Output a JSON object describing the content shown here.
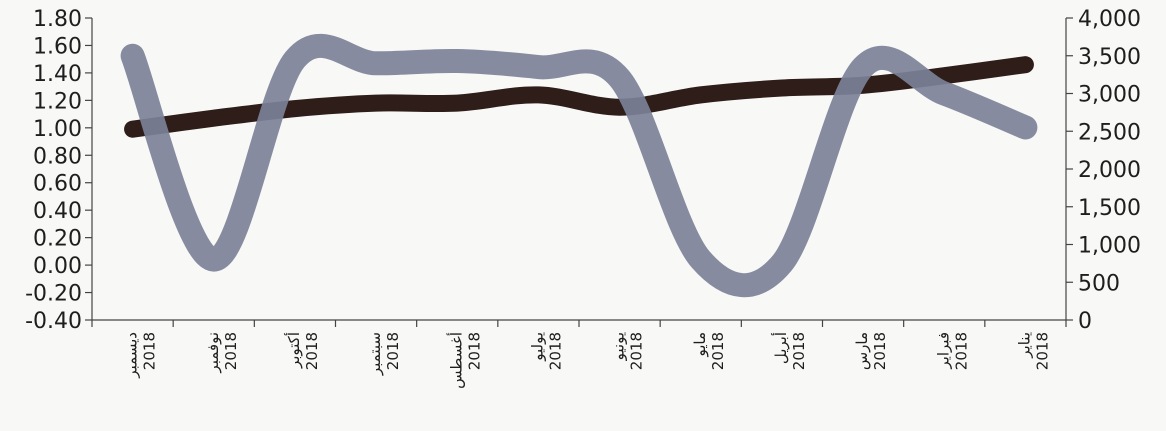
{
  "chart_data": {
    "type": "line",
    "categories": [
      "ديسمبر 2018",
      "نوفمبر 2018",
      "أكتوبر 2018",
      "سبتمبر 2018",
      "أغسطس 2018",
      "يوليو 2018",
      "يونيو 2018",
      "مايو 2018",
      "أبريل 2018",
      "مارس 2018",
      "فبراير 2018",
      "يناير 2018"
    ],
    "series": [
      {
        "axis": "left",
        "color": "#2e1d18",
        "values": [
          0.99,
          1.07,
          1.14,
          1.18,
          1.18,
          1.24,
          1.15,
          1.24,
          1.29,
          1.31,
          1.38,
          1.46
        ]
      },
      {
        "axis": "right",
        "color": "#7c8198",
        "values": [
          3500,
          800,
          3450,
          3400,
          3430,
          3350,
          3200,
          800,
          750,
          3350,
          3000,
          2550
        ]
      }
    ],
    "left_axis": {
      "ylim": [
        -0.4,
        1.8
      ],
      "ticks": [
        "1.80",
        "1.60",
        "1.40",
        "1.20",
        "1.00",
        "0.80",
        "0.60",
        "0.40",
        "0.20",
        "0.00",
        "-0.20",
        "-0.40"
      ]
    },
    "right_axis": {
      "ylim": [
        0,
        4000
      ],
      "ticks": [
        "4,000",
        "3,500",
        "3,000",
        "2,500",
        "2,000",
        "1,500",
        "1,000",
        "500",
        "0"
      ]
    },
    "grid": false,
    "legend": "none"
  }
}
